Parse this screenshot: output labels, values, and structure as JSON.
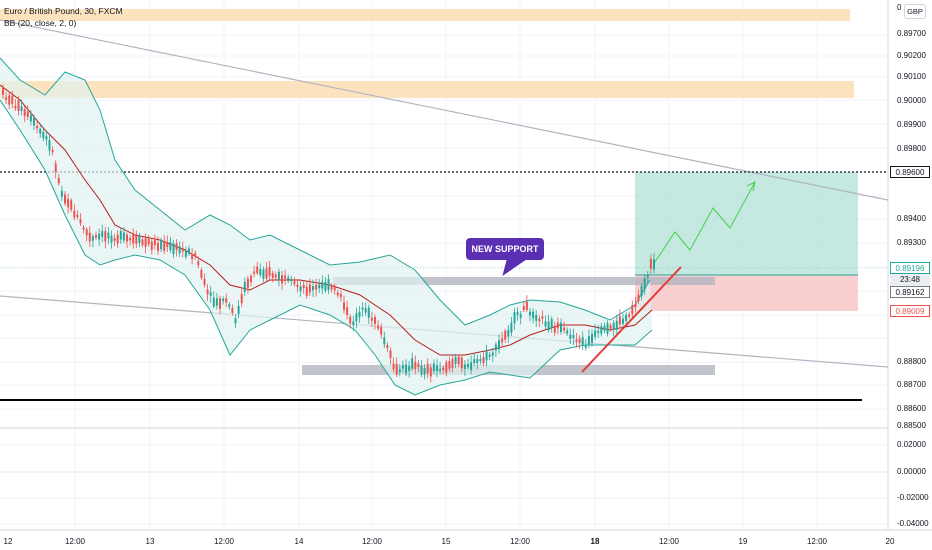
{
  "header": {
    "symbol": "Euro / British Pound, 30, FXCM",
    "indicator": "BB (20, close, 2, 0)"
  },
  "currency_button": "GBP",
  "annotation": "NEW SUPPORT",
  "price_axis": {
    "labels": [
      "0.90200",
      "0.90100",
      "0.90000",
      "0.89900",
      "0.89800",
      "0.89700",
      "0.89400",
      "0.89300",
      "0.88800",
      "0.88700",
      "0.88600",
      "0.88500"
    ],
    "tags": {
      "level_line": "0.89600",
      "last_price": "0.89196",
      "countdown": "23:48",
      "bb_basis": "0.89162",
      "stop": "0.89009"
    }
  },
  "oscillator_axis": {
    "labels": [
      "0.02000",
      "0.00000",
      "-0.02000",
      "-0.04000"
    ]
  },
  "time_axis": {
    "labels": [
      "12:00",
      "13",
      "12:00",
      "14",
      "12:00",
      "15",
      "12:00",
      "18",
      "12:00",
      "19",
      "12:00"
    ]
  },
  "colors": {
    "up_candle": "#26a69a",
    "down_candle": "#ef5350",
    "bb_band": "#26a69a",
    "bb_basis": "#b71c1c",
    "bb_fill": "#e0f2f1",
    "zone_orange": "#fde3bd",
    "zone_gray": "#b2b5be",
    "target_zone": "#b2e0d6",
    "stop_zone": "#f8c7c7",
    "annotation_bg": "#5b2fb2",
    "trend_red": "#e53935",
    "projection_green": "#43d14e"
  }
}
